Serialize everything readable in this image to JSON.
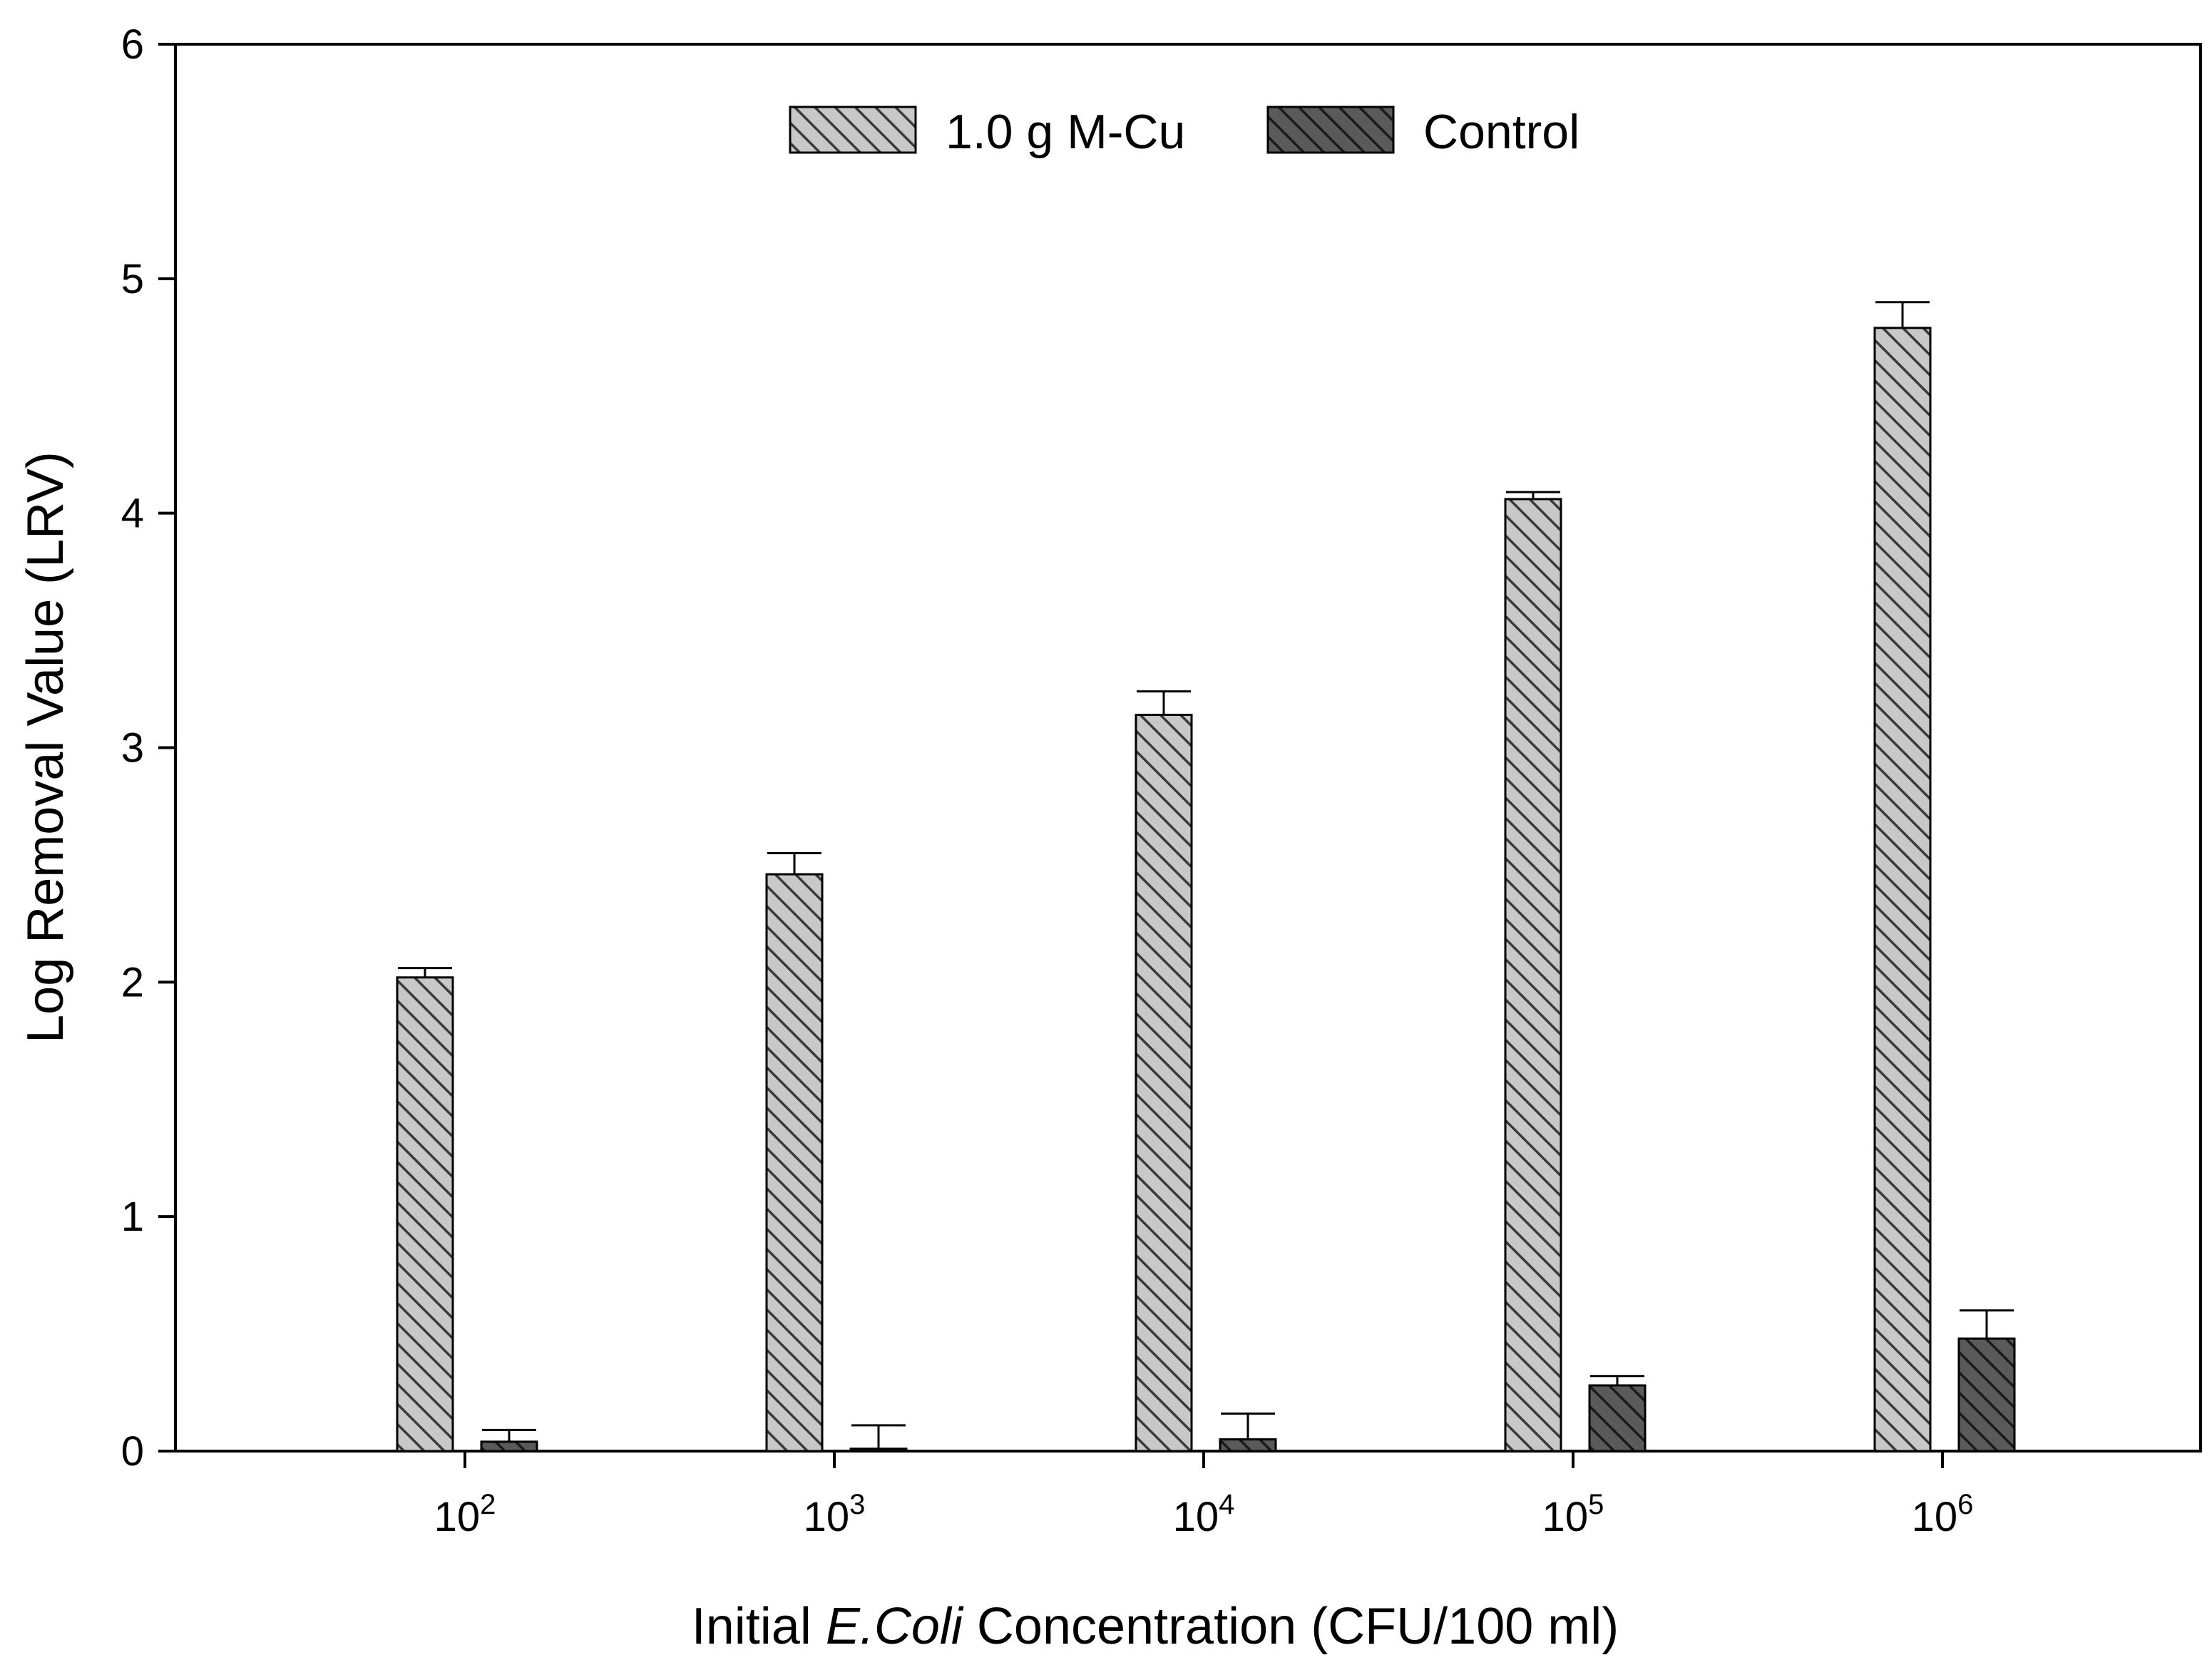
{
  "chart_data": {
    "type": "bar",
    "title": "",
    "xlabel": {
      "prefix": "Initial ",
      "italic": "E.Coli",
      "suffix": " Concentration (CFU/100 ml)"
    },
    "ylabel": "Log Removal Value (LRV)",
    "ylim": [
      0,
      6
    ],
    "yticks": [
      "0",
      "1",
      "2",
      "3",
      "4",
      "5",
      "6"
    ],
    "categories": [
      {
        "base": "10",
        "exp": "2"
      },
      {
        "base": "10",
        "exp": "3"
      },
      {
        "base": "10",
        "exp": "4"
      },
      {
        "base": "10",
        "exp": "5"
      },
      {
        "base": "10",
        "exp": "6"
      }
    ],
    "legend_position": "top-center",
    "series": [
      {
        "name": "1.0 g M-Cu",
        "color": "#c8c8c8",
        "hatch_color": "#3a3a3a",
        "values": [
          2.02,
          2.46,
          3.14,
          4.06,
          4.79
        ],
        "errors": [
          0.04,
          0.09,
          0.1,
          0.03,
          0.11
        ]
      },
      {
        "name": "Control",
        "color": "#5a5a5a",
        "hatch_color": "#1a1a1a",
        "values": [
          0.04,
          0.01,
          0.05,
          0.28,
          0.48
        ],
        "errors": [
          0.05,
          0.1,
          0.11,
          0.04,
          0.12
        ]
      }
    ]
  }
}
